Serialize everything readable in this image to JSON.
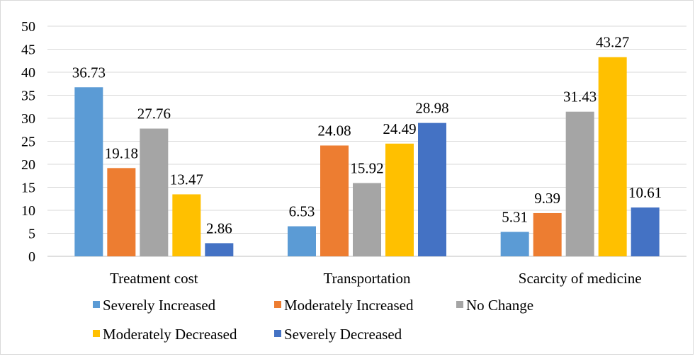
{
  "chart_data": {
    "type": "bar",
    "title": "",
    "xlabel": "",
    "ylabel": "",
    "ylim": [
      0,
      50
    ],
    "yticks": [
      "0",
      "5",
      "10",
      "15",
      "20",
      "25",
      "30",
      "35",
      "40",
      "45",
      "50"
    ],
    "grid": true,
    "legend_position": "bottom",
    "categories": [
      "Treatment cost",
      "Transportation",
      "Scarcity of medicine"
    ],
    "series": [
      {
        "name": "Severely Increased",
        "color": "#5B9BD5",
        "values": [
          36.73,
          6.53,
          5.31
        ],
        "labels": [
          "36.73",
          "6.53",
          "5.31"
        ]
      },
      {
        "name": "Moderately Increased",
        "color": "#ED7D31",
        "values": [
          19.18,
          24.08,
          9.39
        ],
        "labels": [
          "19.18",
          "24.08",
          "9.39"
        ]
      },
      {
        "name": "No Change",
        "color": "#A5A5A5",
        "values": [
          27.76,
          15.92,
          31.43
        ],
        "labels": [
          "27.76",
          "15.92",
          "31.43"
        ]
      },
      {
        "name": "Moderately Decreased",
        "color": "#FFC000",
        "values": [
          13.47,
          24.49,
          43.27
        ],
        "labels": [
          "13.47",
          "24.49",
          "43.27"
        ]
      },
      {
        "name": "Severely Decreased",
        "color": "#4472C4",
        "values": [
          2.86,
          28.98,
          10.61
        ],
        "labels": [
          "2.86",
          "28.98",
          "10.61"
        ]
      }
    ]
  }
}
